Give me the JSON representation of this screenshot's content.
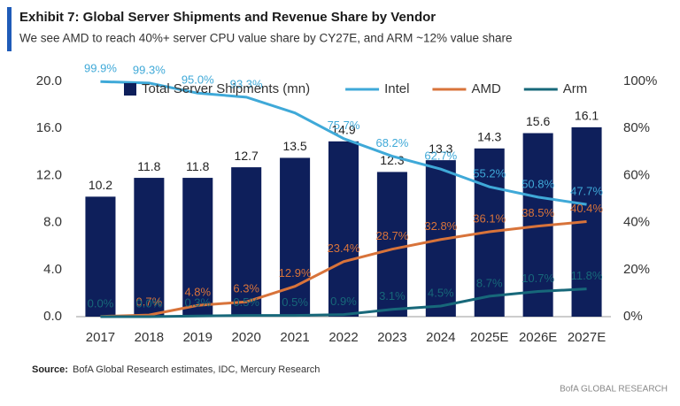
{
  "chart_data": {
    "type": "bar",
    "title": "Exhibit 7: Global Server Shipments and Revenue Share by Vendor",
    "subtitle": "We see AMD to reach 40%+ server CPU value share by CY27E, and ARM ~12% value share",
    "source_label": "Source:",
    "source": "BofA Global Research estimates, IDC, Mercury Research",
    "brand": "BofA GLOBAL RESEARCH",
    "categories": [
      "2017",
      "2018",
      "2019",
      "2020",
      "2021",
      "2022",
      "2023",
      "2024",
      "2025E",
      "2026E",
      "2027E"
    ],
    "series": [
      {
        "name": "Total Server Shipments (mn)",
        "type": "bar",
        "axis": "y",
        "color": "#0e1f5b",
        "values": [
          10.2,
          11.8,
          11.8,
          12.7,
          13.5,
          14.9,
          12.3,
          13.3,
          14.3,
          15.6,
          16.1
        ]
      },
      {
        "name": "Intel",
        "type": "line",
        "axis": "y2",
        "color": "#3fa9d8",
        "values": [
          99.9,
          99.3,
          95.0,
          93.3,
          86.6,
          75.7,
          68.2,
          62.7,
          55.2,
          50.8,
          47.7
        ],
        "value_labels": [
          "99.9%",
          "99.3%",
          "95.0%",
          "93.3%",
          null,
          "75.7%",
          "68.2%",
          "62.7%",
          "55.2%",
          "50.8%",
          "47.7%"
        ]
      },
      {
        "name": "AMD",
        "type": "line",
        "axis": "y2",
        "color": "#d8733a",
        "values": [
          0.1,
          0.7,
          4.8,
          6.3,
          12.9,
          23.4,
          28.7,
          32.8,
          36.1,
          38.5,
          40.4
        ],
        "value_labels": [
          null,
          "0.7%",
          "4.8%",
          "6.3%",
          "12.9%",
          "23.4%",
          "28.7%",
          "32.8%",
          "36.1%",
          "38.5%",
          "40.4%"
        ]
      },
      {
        "name": "Arm",
        "type": "line",
        "axis": "y2",
        "color": "#17687a",
        "values": [
          0.0,
          0.0,
          0.3,
          0.5,
          0.5,
          0.9,
          3.1,
          4.5,
          8.7,
          10.7,
          11.8
        ],
        "value_labels": [
          "0.0%",
          "0.0%",
          "0.3%",
          "0.5%",
          "0.5%",
          "0.9%",
          "3.1%",
          "4.5%",
          "8.7%",
          "10.7%",
          "11.8%"
        ]
      }
    ],
    "ylim": [
      0,
      20
    ],
    "yticks": [
      {
        "value": 0,
        "label": "0.0"
      },
      {
        "value": 4,
        "label": "4.0"
      },
      {
        "value": 8,
        "label": "8.0"
      },
      {
        "value": 12,
        "label": "12.0"
      },
      {
        "value": 16,
        "label": "16.0"
      },
      {
        "value": 20,
        "label": "20.0"
      }
    ],
    "y2lim": [
      0,
      100
    ],
    "y2ticks": [
      {
        "value": 0,
        "label": "0%"
      },
      {
        "value": 20,
        "label": "20%"
      },
      {
        "value": 40,
        "label": "40%"
      },
      {
        "value": 60,
        "label": "60%"
      },
      {
        "value": 80,
        "label": "80%"
      },
      {
        "value": 100,
        "label": "100%"
      }
    ]
  }
}
